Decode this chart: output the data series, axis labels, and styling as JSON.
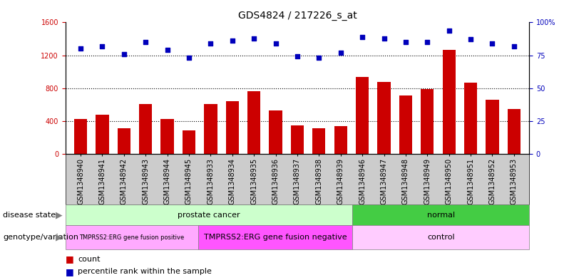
{
  "title": "GDS4824 / 217226_s_at",
  "samples": [
    "GSM1348940",
    "GSM1348941",
    "GSM1348942",
    "GSM1348943",
    "GSM1348944",
    "GSM1348945",
    "GSM1348933",
    "GSM1348934",
    "GSM1348935",
    "GSM1348936",
    "GSM1348937",
    "GSM1348938",
    "GSM1348939",
    "GSM1348946",
    "GSM1348947",
    "GSM1348948",
    "GSM1348949",
    "GSM1348950",
    "GSM1348951",
    "GSM1348952",
    "GSM1348953"
  ],
  "counts": [
    430,
    480,
    310,
    610,
    430,
    290,
    610,
    640,
    760,
    530,
    350,
    310,
    340,
    940,
    880,
    710,
    790,
    1270,
    870,
    660,
    550
  ],
  "percentiles": [
    80,
    82,
    76,
    85,
    79,
    73,
    84,
    86,
    88,
    84,
    74,
    73,
    77,
    89,
    88,
    85,
    85,
    94,
    87,
    84,
    82
  ],
  "ylim_left": [
    0,
    1600
  ],
  "ylim_right": [
    0,
    100
  ],
  "yticks_left": [
    0,
    400,
    800,
    1200,
    1600
  ],
  "yticks_right_vals": [
    0,
    25,
    50,
    75,
    100
  ],
  "yticks_right_labels": [
    "0",
    "25",
    "50",
    "75",
    "100%"
  ],
  "bar_color": "#cc0000",
  "dot_color": "#0000bb",
  "grid_color": "#000000",
  "background_color": "#ffffff",
  "disease_state_groups": [
    {
      "label": "prostate cancer",
      "start": 0,
      "end": 13,
      "color": "#ccffcc"
    },
    {
      "label": "normal",
      "start": 13,
      "end": 21,
      "color": "#44cc44"
    }
  ],
  "genotype_groups": [
    {
      "label": "TMPRSS2:ERG gene fusion positive",
      "start": 0,
      "end": 6,
      "color": "#ffaaff"
    },
    {
      "label": "TMPRSS2:ERG gene fusion negative",
      "start": 6,
      "end": 13,
      "color": "#ff55ff"
    },
    {
      "label": "control",
      "start": 13,
      "end": 21,
      "color": "#ffccff"
    }
  ],
  "title_fontsize": 10,
  "tick_fontsize": 7,
  "annotation_fontsize": 8,
  "legend_fontsize": 8
}
